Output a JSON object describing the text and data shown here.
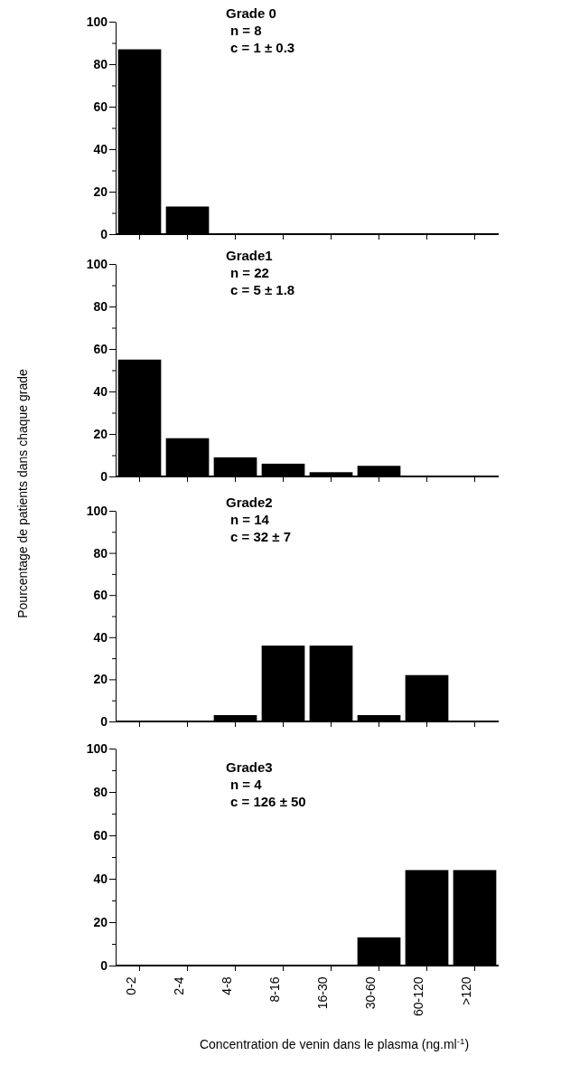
{
  "chart_data": [
    {
      "type": "bar",
      "title": "Grade 0",
      "annotations": [
        "n = 8",
        "c = 1 ± 0.3"
      ],
      "categories": [
        null,
        null,
        null,
        null,
        null,
        null,
        null,
        null
      ],
      "values": [
        87,
        13,
        0,
        0,
        0,
        0,
        0,
        0
      ],
      "color": "#000000",
      "ylim": [
        0,
        100
      ],
      "yticks": [
        0,
        {
          "value": 10,
          "label": null
        },
        20,
        {
          "value": 30,
          "label": null
        },
        40,
        {
          "value": 50,
          "label": null
        },
        60,
        {
          "value": 70,
          "label": null
        },
        80,
        {
          "value": 90,
          "label": null
        },
        100
      ],
      "tick_labels": "y"
    },
    {
      "type": "bar",
      "title": "Grade1",
      "ylabel": "Pourcentage de patients dans chaque grade",
      "annotations": [
        "n = 22",
        "c = 5 ± 1.8"
      ],
      "categories": [
        null,
        null,
        null,
        null,
        null,
        null,
        null,
        null
      ],
      "values": [
        55,
        18,
        9,
        6,
        2,
        5,
        0,
        0
      ],
      "color": "#000000",
      "ylim": [
        0,
        100
      ],
      "yticks": [
        0,
        {
          "value": 10,
          "label": null
        },
        20,
        {
          "value": 30,
          "label": null
        },
        40,
        {
          "value": 50,
          "label": null
        },
        60,
        {
          "value": 70,
          "label": null
        },
        80,
        {
          "value": 90,
          "label": null
        },
        100
      ],
      "tick_labels": "y"
    },
    {
      "type": "bar",
      "title": "Grade2",
      "annotations": [
        "n = 14",
        "c = 32 ± 7"
      ],
      "categories": [
        null,
        null,
        null,
        null,
        null,
        null,
        null,
        null
      ],
      "values": [
        0,
        0,
        3,
        36,
        36,
        3,
        22,
        0
      ],
      "color": "#000000",
      "ylim": [
        0,
        100
      ],
      "yticks": [
        0,
        {
          "value": 10,
          "label": null
        },
        20,
        {
          "value": 30,
          "label": null
        },
        40,
        {
          "value": 50,
          "label": null
        },
        60,
        {
          "value": 70,
          "label": null
        },
        80,
        {
          "value": 90,
          "label": null
        },
        100
      ],
      "tick_labels": "y"
    },
    {
      "type": "bar",
      "title": "Grade3",
      "xlabel": "Concentration de venin dans le plasma (ng.ml$^{-1}$)",
      "annotations": [
        "n = 4",
        "c = 126 ± 50"
      ],
      "categories": [
        "0-2",
        "2-4",
        "4-8",
        "8-16",
        "16-30",
        "30-60",
        "60-120",
        ">120"
      ],
      "values": [
        0,
        0,
        0,
        0,
        0,
        13,
        44,
        44
      ],
      "color": "#000000",
      "ylim": [
        0,
        100
      ],
      "yticks": [
        0,
        {
          "value": 10,
          "label": null
        },
        20,
        {
          "value": 30,
          "label": null
        },
        40,
        {
          "value": 50,
          "label": null
        },
        60,
        {
          "value": 70,
          "label": null
        },
        80,
        {
          "value": 90,
          "label": null
        },
        100
      ]
    }
  ]
}
